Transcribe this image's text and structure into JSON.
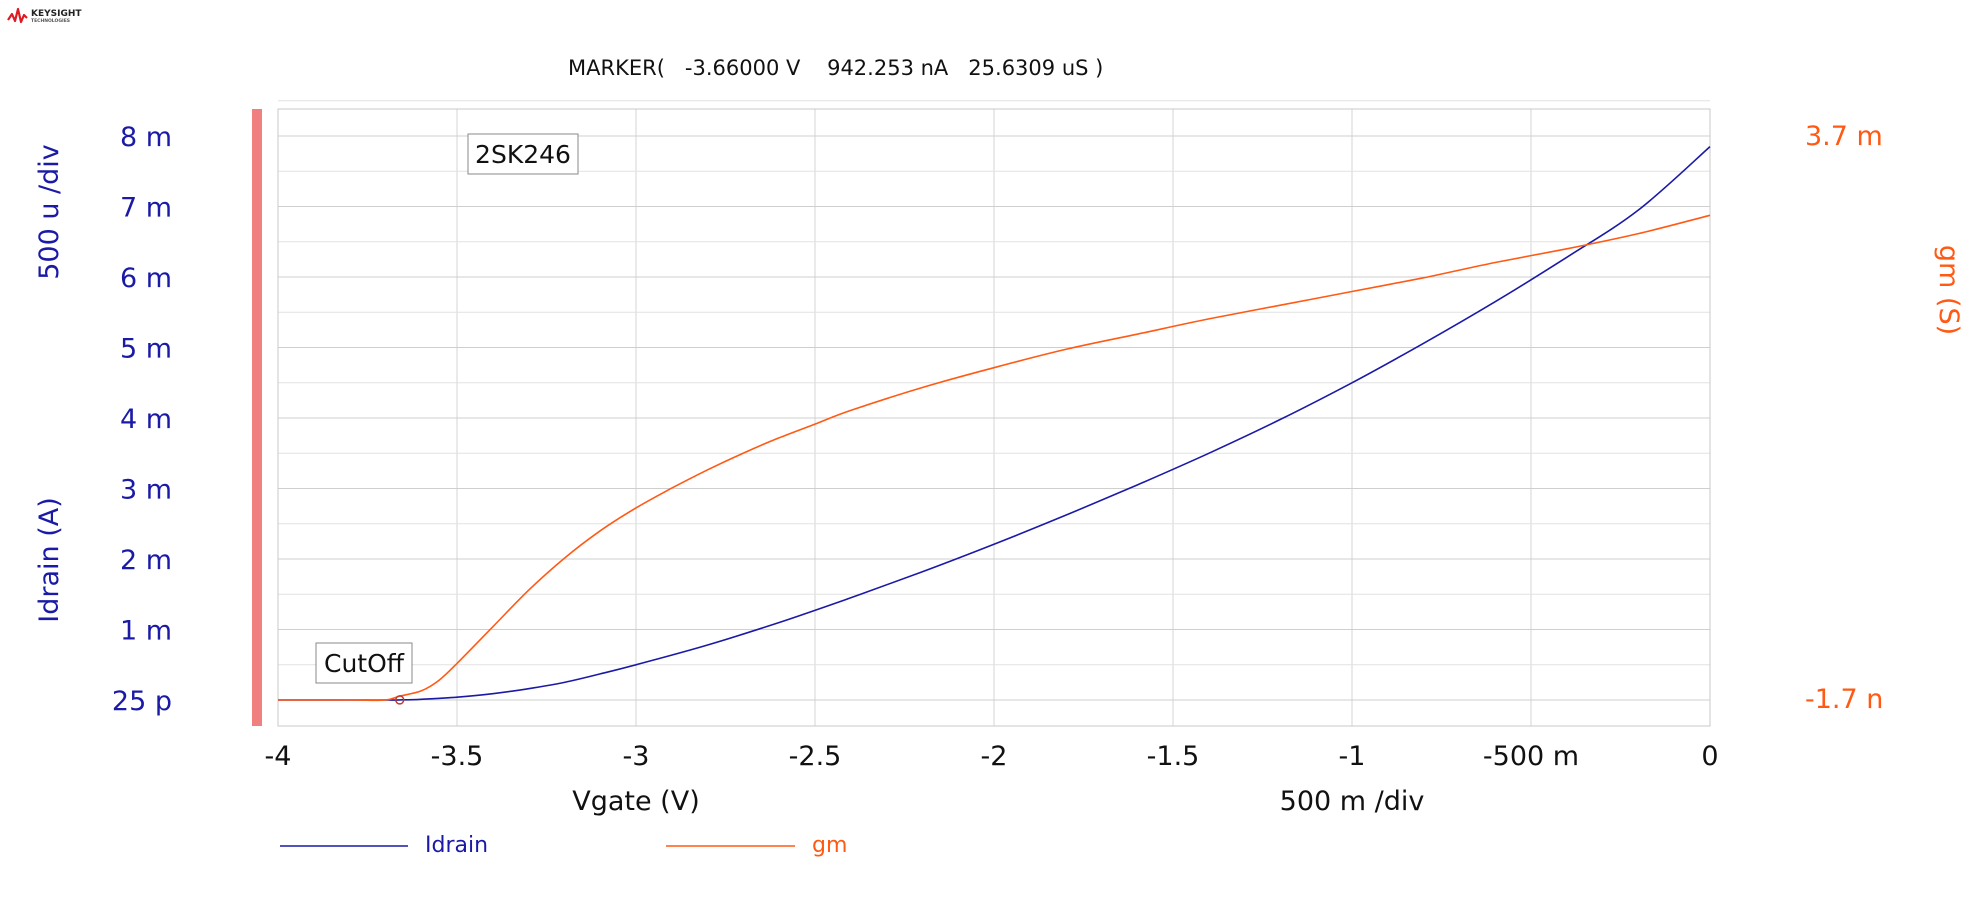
{
  "logo": {
    "brand": "KEYSIGHT",
    "sub": "TECHNOLOGIES"
  },
  "marker": {
    "text": "MARKER(   -3.66000 V    942.253 nA   25.6309 uS )"
  },
  "colors": {
    "idrain": "#1a1aa6",
    "gm": "#ff5a14",
    "grid": "#d4d4d4",
    "axis_bar": "#f08080",
    "label_left": "#1a1aa6",
    "label_right": "#ff5a14"
  },
  "chart_data": {
    "type": "line",
    "title": "",
    "annotations": [
      "2SK246",
      "CutOff"
    ],
    "marker_point": {
      "x": -3.66,
      "y_idrain": 9.42253e-07,
      "y_gm": 2.56309e-05
    },
    "xlabel": "Vgate (V)",
    "x_div_label": "500 m /div",
    "xlim": [
      -4,
      0
    ],
    "x_ticks": [
      -4,
      -3.5,
      -3,
      -2.5,
      -2,
      -1.5,
      -1,
      -0.5,
      0
    ],
    "x_tick_labels": [
      "-4",
      "-3.5",
      "-3",
      "-2.5",
      "-2",
      "-1.5",
      "-1",
      "-500 m",
      "0"
    ],
    "y_left": {
      "label": "Idrain (A)",
      "div_label": "500 u /div",
      "ylim": [
        0,
        0.008
      ],
      "ticks": [
        0.008,
        0.007,
        0.006,
        0.005,
        0.004,
        0.003,
        0.002,
        0.001,
        0
      ],
      "tick_labels": [
        "8 m",
        "7 m",
        "6 m",
        "5 m",
        "4 m",
        "3 m",
        "2 m",
        "1 m",
        "25 p"
      ]
    },
    "y_right": {
      "label": "gm (S)",
      "ylim": [
        -1.7e-09,
        0.0037
      ],
      "tick_labels": [
        "3.7 m",
        "-1.7 n"
      ]
    },
    "grid": true,
    "legend": {
      "position": "bottom-left",
      "entries": [
        "Idrain",
        "gm"
      ]
    },
    "series": [
      {
        "name": "Idrain",
        "axis": "left",
        "x": [
          -4,
          -3.8,
          -3.7,
          -3.66,
          -3.6,
          -3.5,
          -3.4,
          -3.3,
          -3.2,
          -3.1,
          -3.0,
          -2.8,
          -2.6,
          -2.4,
          -2.2,
          -2.0,
          -1.8,
          -1.6,
          -1.4,
          -1.2,
          -1.0,
          -0.8,
          -0.6,
          -0.4,
          -0.2,
          0
        ],
        "values": [
          0,
          0,
          0,
          9e-07,
          1e-05,
          4e-05,
          9e-05,
          0.00016,
          0.00025,
          0.00037,
          0.0005,
          0.00078,
          0.0011,
          0.00145,
          0.00182,
          0.00221,
          0.00262,
          0.00305,
          0.0035,
          0.00398,
          0.0045,
          0.00506,
          0.00565,
          0.00628,
          0.00695,
          0.00785
        ]
      },
      {
        "name": "gm",
        "axis": "right",
        "x": [
          -4,
          -3.8,
          -3.7,
          -3.66,
          -3.6,
          -3.55,
          -3.5,
          -3.4,
          -3.3,
          -3.2,
          -3.1,
          -3.0,
          -2.9,
          -2.8,
          -2.7,
          -2.6,
          -2.5,
          -2.4,
          -2.2,
          -2.0,
          -1.8,
          -1.6,
          -1.4,
          -1.2,
          -1.0,
          -0.8,
          -0.6,
          -0.4,
          -0.2,
          0
        ],
        "values": [
          0,
          0,
          0,
          2.56e-05,
          6e-05,
          0.00013,
          0.00024,
          0.00048,
          0.00072,
          0.00093,
          0.00111,
          0.00126,
          0.00139,
          0.00151,
          0.00162,
          0.00172,
          0.00181,
          0.0019,
          0.00205,
          0.00218,
          0.0023,
          0.0024,
          0.0025,
          0.00259,
          0.00268,
          0.00277,
          0.00287,
          0.00296,
          0.00306,
          0.00318
        ]
      }
    ]
  }
}
